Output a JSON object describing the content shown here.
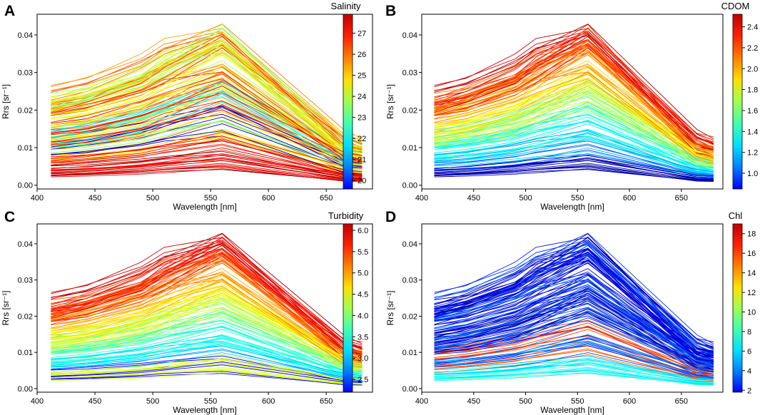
{
  "chart_data": [
    {
      "type": "line",
      "panel_letter": "A",
      "color_variable": "Salinity",
      "colorbar_range": [
        19.6,
        27.9
      ],
      "colorbar_ticks": [
        "20",
        "21",
        "22",
        "23",
        "24",
        "25",
        "26",
        "27"
      ],
      "colorbar_tick_values": [
        20,
        21,
        22,
        23,
        24,
        25,
        26,
        27
      ],
      "xlabel": "Wavelength [nm]",
      "ylabel": "Rrs [sr⁻¹]",
      "x": [
        412,
        443,
        490,
        510,
        560,
        665,
        681
      ],
      "xlim": [
        400,
        690
      ],
      "ylim": [
        -0.001,
        0.0455
      ],
      "xticks": [
        "400",
        "450",
        "500",
        "550",
        "600",
        "650"
      ],
      "xtick_values": [
        400,
        450,
        500,
        550,
        600,
        650
      ],
      "yticks": [
        "0.00",
        "0.01",
        "0.02",
        "0.03",
        "0.04"
      ],
      "ytick_values": [
        0,
        0.01,
        0.02,
        0.03,
        0.04
      ],
      "mapping": "salinity",
      "n_spectra": 140
    },
    {
      "type": "line",
      "panel_letter": "B",
      "color_variable": "CDOM",
      "colorbar_range": [
        0.85,
        2.52
      ],
      "colorbar_ticks": [
        "1.0",
        "1.2",
        "1.4",
        "1.6",
        "1.8",
        "2.0",
        "2.2",
        "2.4"
      ],
      "colorbar_tick_values": [
        1.0,
        1.2,
        1.4,
        1.6,
        1.8,
        2.0,
        2.2,
        2.4
      ],
      "xlabel": "Wavelength [nm]",
      "ylabel": "Rrs [sr⁻¹]",
      "x": [
        412,
        443,
        490,
        510,
        560,
        665,
        681
      ],
      "xlim": [
        400,
        690
      ],
      "ylim": [
        -0.001,
        0.0455
      ],
      "xticks": [
        "400",
        "450",
        "500",
        "550",
        "600",
        "650"
      ],
      "xtick_values": [
        400,
        450,
        500,
        550,
        600,
        650
      ],
      "yticks": [
        "0.00",
        "0.01",
        "0.02",
        "0.03",
        "0.04"
      ],
      "ytick_values": [
        0,
        0.01,
        0.02,
        0.03,
        0.04
      ],
      "mapping": "cdom",
      "n_spectra": 140
    },
    {
      "type": "line",
      "panel_letter": "C",
      "color_variable": "Turbidity",
      "colorbar_range": [
        2.2,
        6.15
      ],
      "colorbar_ticks": [
        "2.5",
        "3.0",
        "3.5",
        "4.0",
        "4.5",
        "5.0",
        "5.5",
        "6.0"
      ],
      "colorbar_tick_values": [
        2.5,
        3.0,
        3.5,
        4.0,
        4.5,
        5.0,
        5.5,
        6.0
      ],
      "xlabel": "Wavelength [nm]",
      "ylabel": "Rrs [sr⁻¹]",
      "x": [
        412,
        443,
        490,
        510,
        560,
        665,
        681
      ],
      "xlim": [
        400,
        690
      ],
      "ylim": [
        -0.001,
        0.0455
      ],
      "xticks": [
        "400",
        "450",
        "500",
        "550",
        "600",
        "650"
      ],
      "xtick_values": [
        400,
        450,
        500,
        550,
        600,
        650
      ],
      "yticks": [
        "0.00",
        "0.01",
        "0.02",
        "0.03",
        "0.04"
      ],
      "ytick_values": [
        0,
        0.01,
        0.02,
        0.03,
        0.04
      ],
      "mapping": "turbidity",
      "n_spectra": 140
    },
    {
      "type": "line",
      "panel_letter": "D",
      "color_variable": "Chl",
      "colorbar_range": [
        1.8,
        19.0
      ],
      "colorbar_ticks": [
        "2",
        "4",
        "6",
        "8",
        "10",
        "12",
        "14",
        "16",
        "18"
      ],
      "colorbar_tick_values": [
        2,
        4,
        6,
        8,
        10,
        12,
        14,
        16,
        18
      ],
      "xlabel": "Wavelength [nm]",
      "ylabel": "Rrs [sr⁻¹]",
      "x": [
        412,
        443,
        490,
        510,
        560,
        665,
        681
      ],
      "xlim": [
        400,
        690
      ],
      "ylim": [
        -0.001,
        0.0455
      ],
      "xticks": [
        "400",
        "450",
        "500",
        "550",
        "600",
        "650"
      ],
      "xtick_values": [
        400,
        450,
        500,
        550,
        600,
        650
      ],
      "yticks": [
        "0.00",
        "0.01",
        "0.02",
        "0.03",
        "0.04"
      ],
      "ytick_values": [
        0,
        0.01,
        0.02,
        0.03,
        0.04
      ],
      "mapping": "chl",
      "n_spectra": 140
    }
  ]
}
